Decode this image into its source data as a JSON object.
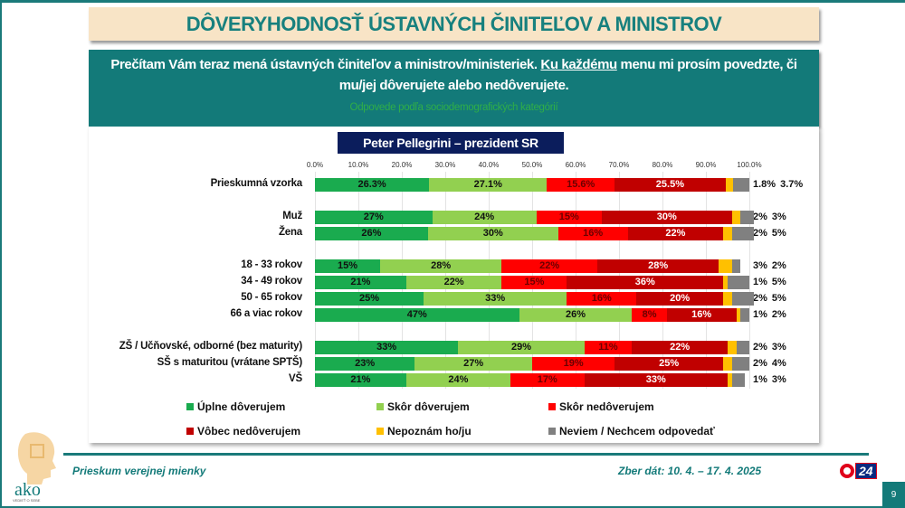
{
  "title": "DÔVERYHODNOSŤ ÚSTAVNÝCH ČINITEĽOV A MINISTROV",
  "question": {
    "part1": "Prečítam Vám teraz mená ústavných činiteľov a ministrov/ministeriek. ",
    "underlined": "Ku každému",
    "part2": " menu mi prosím povedzte, či mu/jej dôverujete alebo nedôverujete.",
    "subtitle": "Odpovede podľa sociodemografických kategórií"
  },
  "chart_data": {
    "type": "bar",
    "stacked": true,
    "orientation": "horizontal",
    "title": "Peter Pellegrini – prezident SR",
    "xlim": [
      0,
      100
    ],
    "x_ticks": [
      "0.0%",
      "10.0%",
      "20.0%",
      "30.0%",
      "40.0%",
      "50.0%",
      "60.0%",
      "70.0%",
      "80.0%",
      "90.0%",
      "100.0%"
    ],
    "grid": true,
    "legend_position": "bottom",
    "categories": [
      "Prieskumná vzorka",
      "Muž",
      "Žena",
      "18 - 33 rokov",
      "34 - 49 rokov",
      "50 - 65 rokov",
      "66 a viac rokov",
      "ZŠ / Učňovské, odborné (bez maturity)",
      "SŠ s maturitou (vrátane SPTŠ)",
      "VŠ"
    ],
    "series": [
      {
        "name": "Úplne dôverujem",
        "color": "#1aab4f",
        "label_color": "#111",
        "values": [
          26.3,
          27,
          26,
          15,
          21,
          25,
          47,
          33,
          23,
          21
        ]
      },
      {
        "name": "Skôr dôverujem",
        "color": "#92d050",
        "label_color": "#111",
        "values": [
          27.1,
          24,
          30,
          28,
          22,
          33,
          26,
          29,
          27,
          24
        ]
      },
      {
        "name": "Skôr nedôverujem",
        "color": "#ff0000",
        "label_color": "#6b0000",
        "values": [
          15.6,
          15,
          16,
          22,
          15,
          16,
          8,
          11,
          19,
          17
        ]
      },
      {
        "name": "Vôbec nedôverujem",
        "color": "#c00000",
        "label_color": "#fff",
        "values": [
          25.5,
          30,
          22,
          28,
          36,
          20,
          16,
          22,
          25,
          33
        ]
      },
      {
        "name": "Nepoznám ho/ju",
        "color": "#ffc000",
        "label_color": "#111",
        "values": [
          1.8,
          2,
          2,
          3,
          1,
          2,
          1,
          2,
          2,
          1
        ]
      },
      {
        "name": "Neviem / Nechcem odpovedať",
        "color": "#808080",
        "label_color": "#111",
        "values": [
          3.7,
          3,
          5,
          2,
          5,
          5,
          2,
          3,
          4,
          3
        ]
      }
    ],
    "data_labels": [
      [
        "26.3%",
        "27.1%",
        "15.6%",
        "25.5%",
        "1.8%",
        "3.7%"
      ],
      [
        "27%",
        "24%",
        "15%",
        "30%",
        "2%",
        "3%"
      ],
      [
        "26%",
        "30%",
        "16%",
        "22%",
        "2%",
        "5%"
      ],
      [
        "15%",
        "28%",
        "22%",
        "28%",
        "3%",
        "2%"
      ],
      [
        "21%",
        "22%",
        "15%",
        "36%",
        "1%",
        "5%"
      ],
      [
        "25%",
        "33%",
        "16%",
        "20%",
        "2%",
        "5%"
      ],
      [
        "47%",
        "26%",
        "8%",
        "16%",
        "1%",
        "2%"
      ],
      [
        "33%",
        "29%",
        "11%",
        "22%",
        "2%",
        "3%"
      ],
      [
        "23%",
        "27%",
        "19%",
        "25%",
        "2%",
        "4%"
      ],
      [
        "21%",
        "24%",
        "17%",
        "33%",
        "1%",
        "3%"
      ]
    ]
  },
  "footer": {
    "left": "Prieskum verejnej mienky",
    "right": "Zber dát: 10. 4. – 17. 4. 2025",
    "page": "9",
    "logo_text": "ako",
    "logo_tagline": "VEDIEŤ O SEBE",
    "channel_logo": "24"
  }
}
